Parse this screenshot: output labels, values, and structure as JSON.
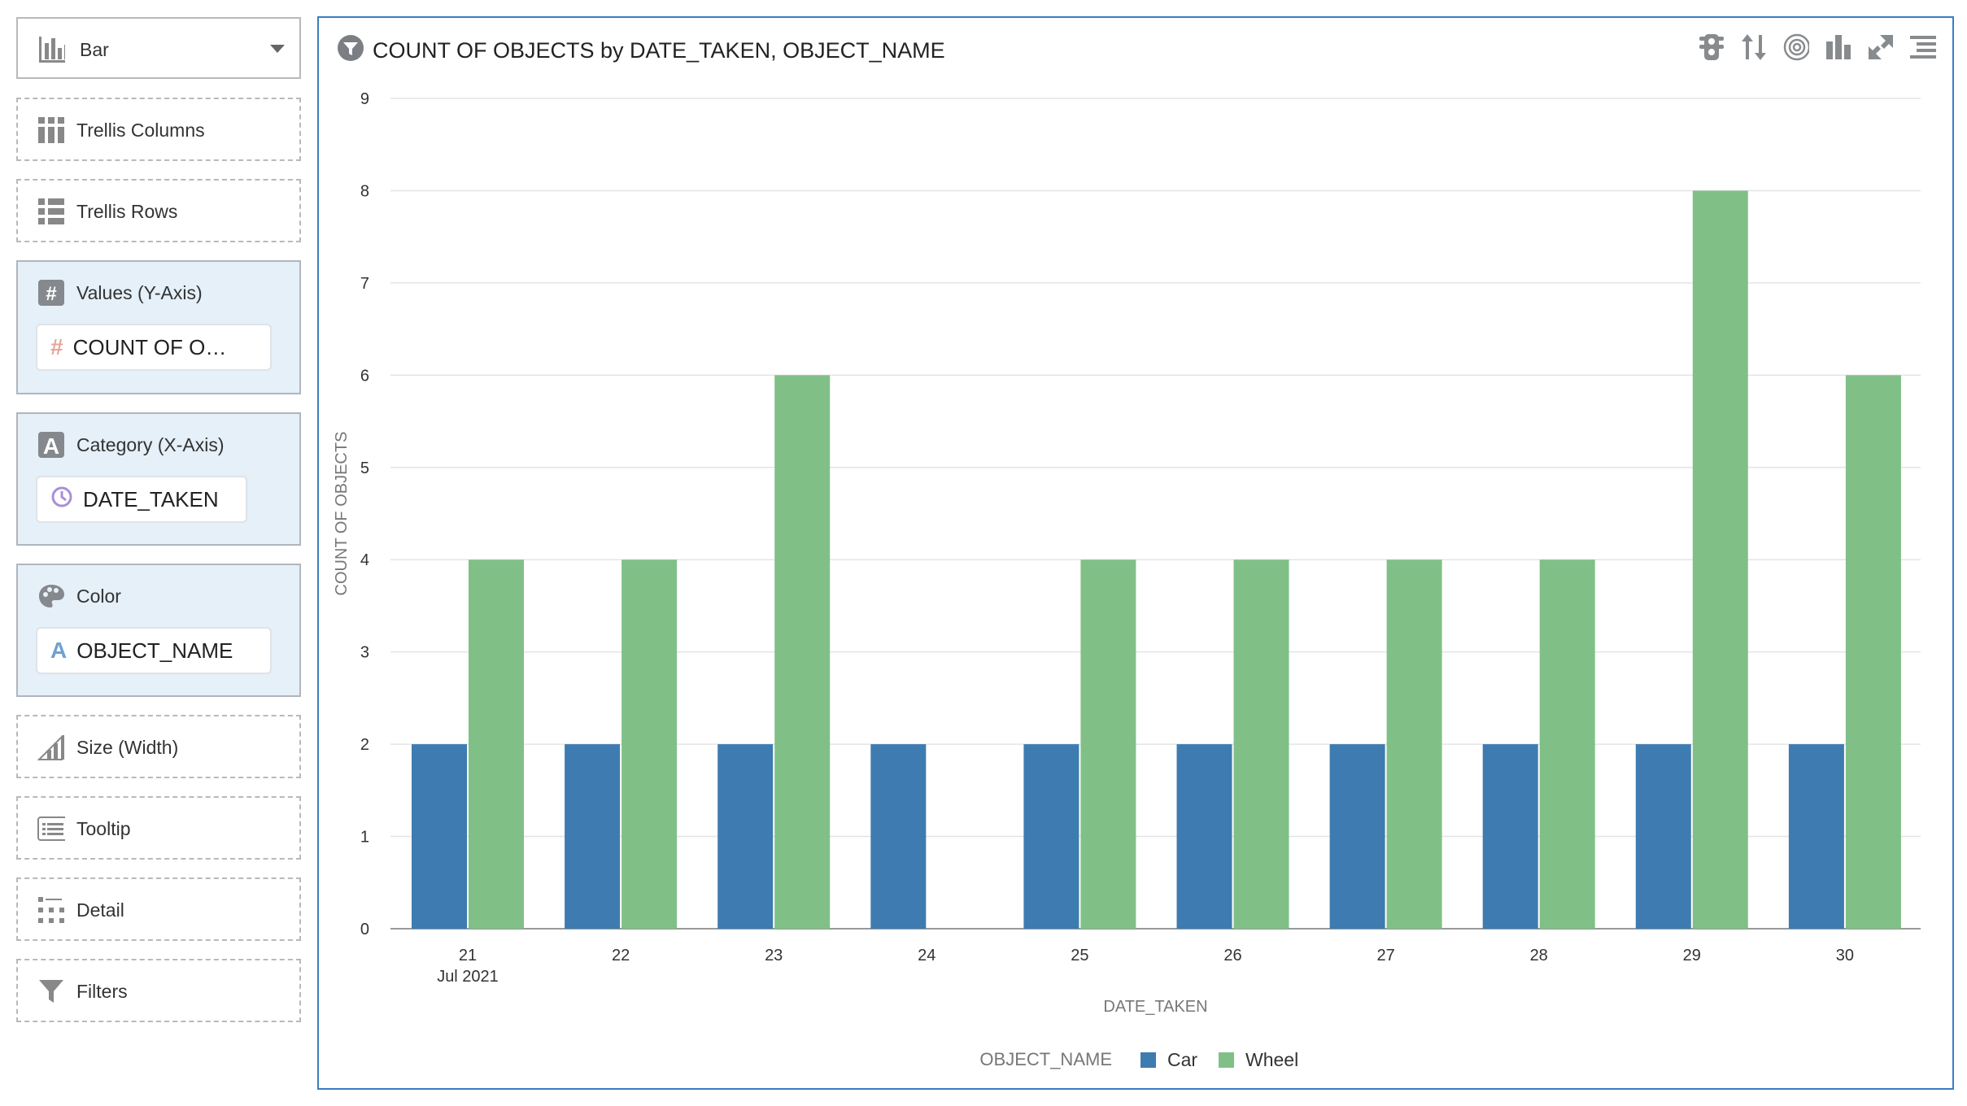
{
  "sidebar": {
    "chart_type": "Bar",
    "trellis_columns": "Trellis Columns",
    "trellis_rows": "Trellis Rows",
    "values_label": "Values (Y-Axis)",
    "values_item": "COUNT OF O…",
    "category_label": "Category (X-Axis)",
    "category_item": "DATE_TAKEN",
    "color_label": "Color",
    "color_item": "OBJECT_NAME",
    "size_label": "Size (Width)",
    "tooltip_label": "Tooltip",
    "detail_label": "Detail",
    "filters_label": "Filters"
  },
  "toolbar_icons": [
    "traffic-light-icon",
    "sort-icon",
    "target-icon",
    "bar-chart-icon",
    "expand-icon",
    "menu-icon"
  ],
  "chart_data": {
    "type": "bar",
    "title": "COUNT OF OBJECTS by DATE_TAKEN, OBJECT_NAME",
    "xlabel": "DATE_TAKEN",
    "ylabel": "COUNT OF OBJECTS",
    "categories": [
      "21",
      "22",
      "23",
      "24",
      "25",
      "26",
      "27",
      "28",
      "29",
      "30"
    ],
    "category_sublabel": "Jul 2021",
    "ylim": [
      0,
      9
    ],
    "yticks": [
      "0",
      "1",
      "2",
      "3",
      "4",
      "5",
      "6",
      "7",
      "8",
      "9"
    ],
    "grid": true,
    "legend_title": "OBJECT_NAME",
    "legend_placement": "bottom",
    "series": [
      {
        "name": "Car",
        "color": "#3e7bb0",
        "values": [
          2,
          2,
          2,
          2,
          2,
          2,
          2,
          2,
          2,
          2
        ]
      },
      {
        "name": "Wheel",
        "color": "#80c087",
        "values": [
          4,
          4,
          6,
          0,
          4,
          4,
          4,
          4,
          8,
          6
        ]
      }
    ]
  }
}
